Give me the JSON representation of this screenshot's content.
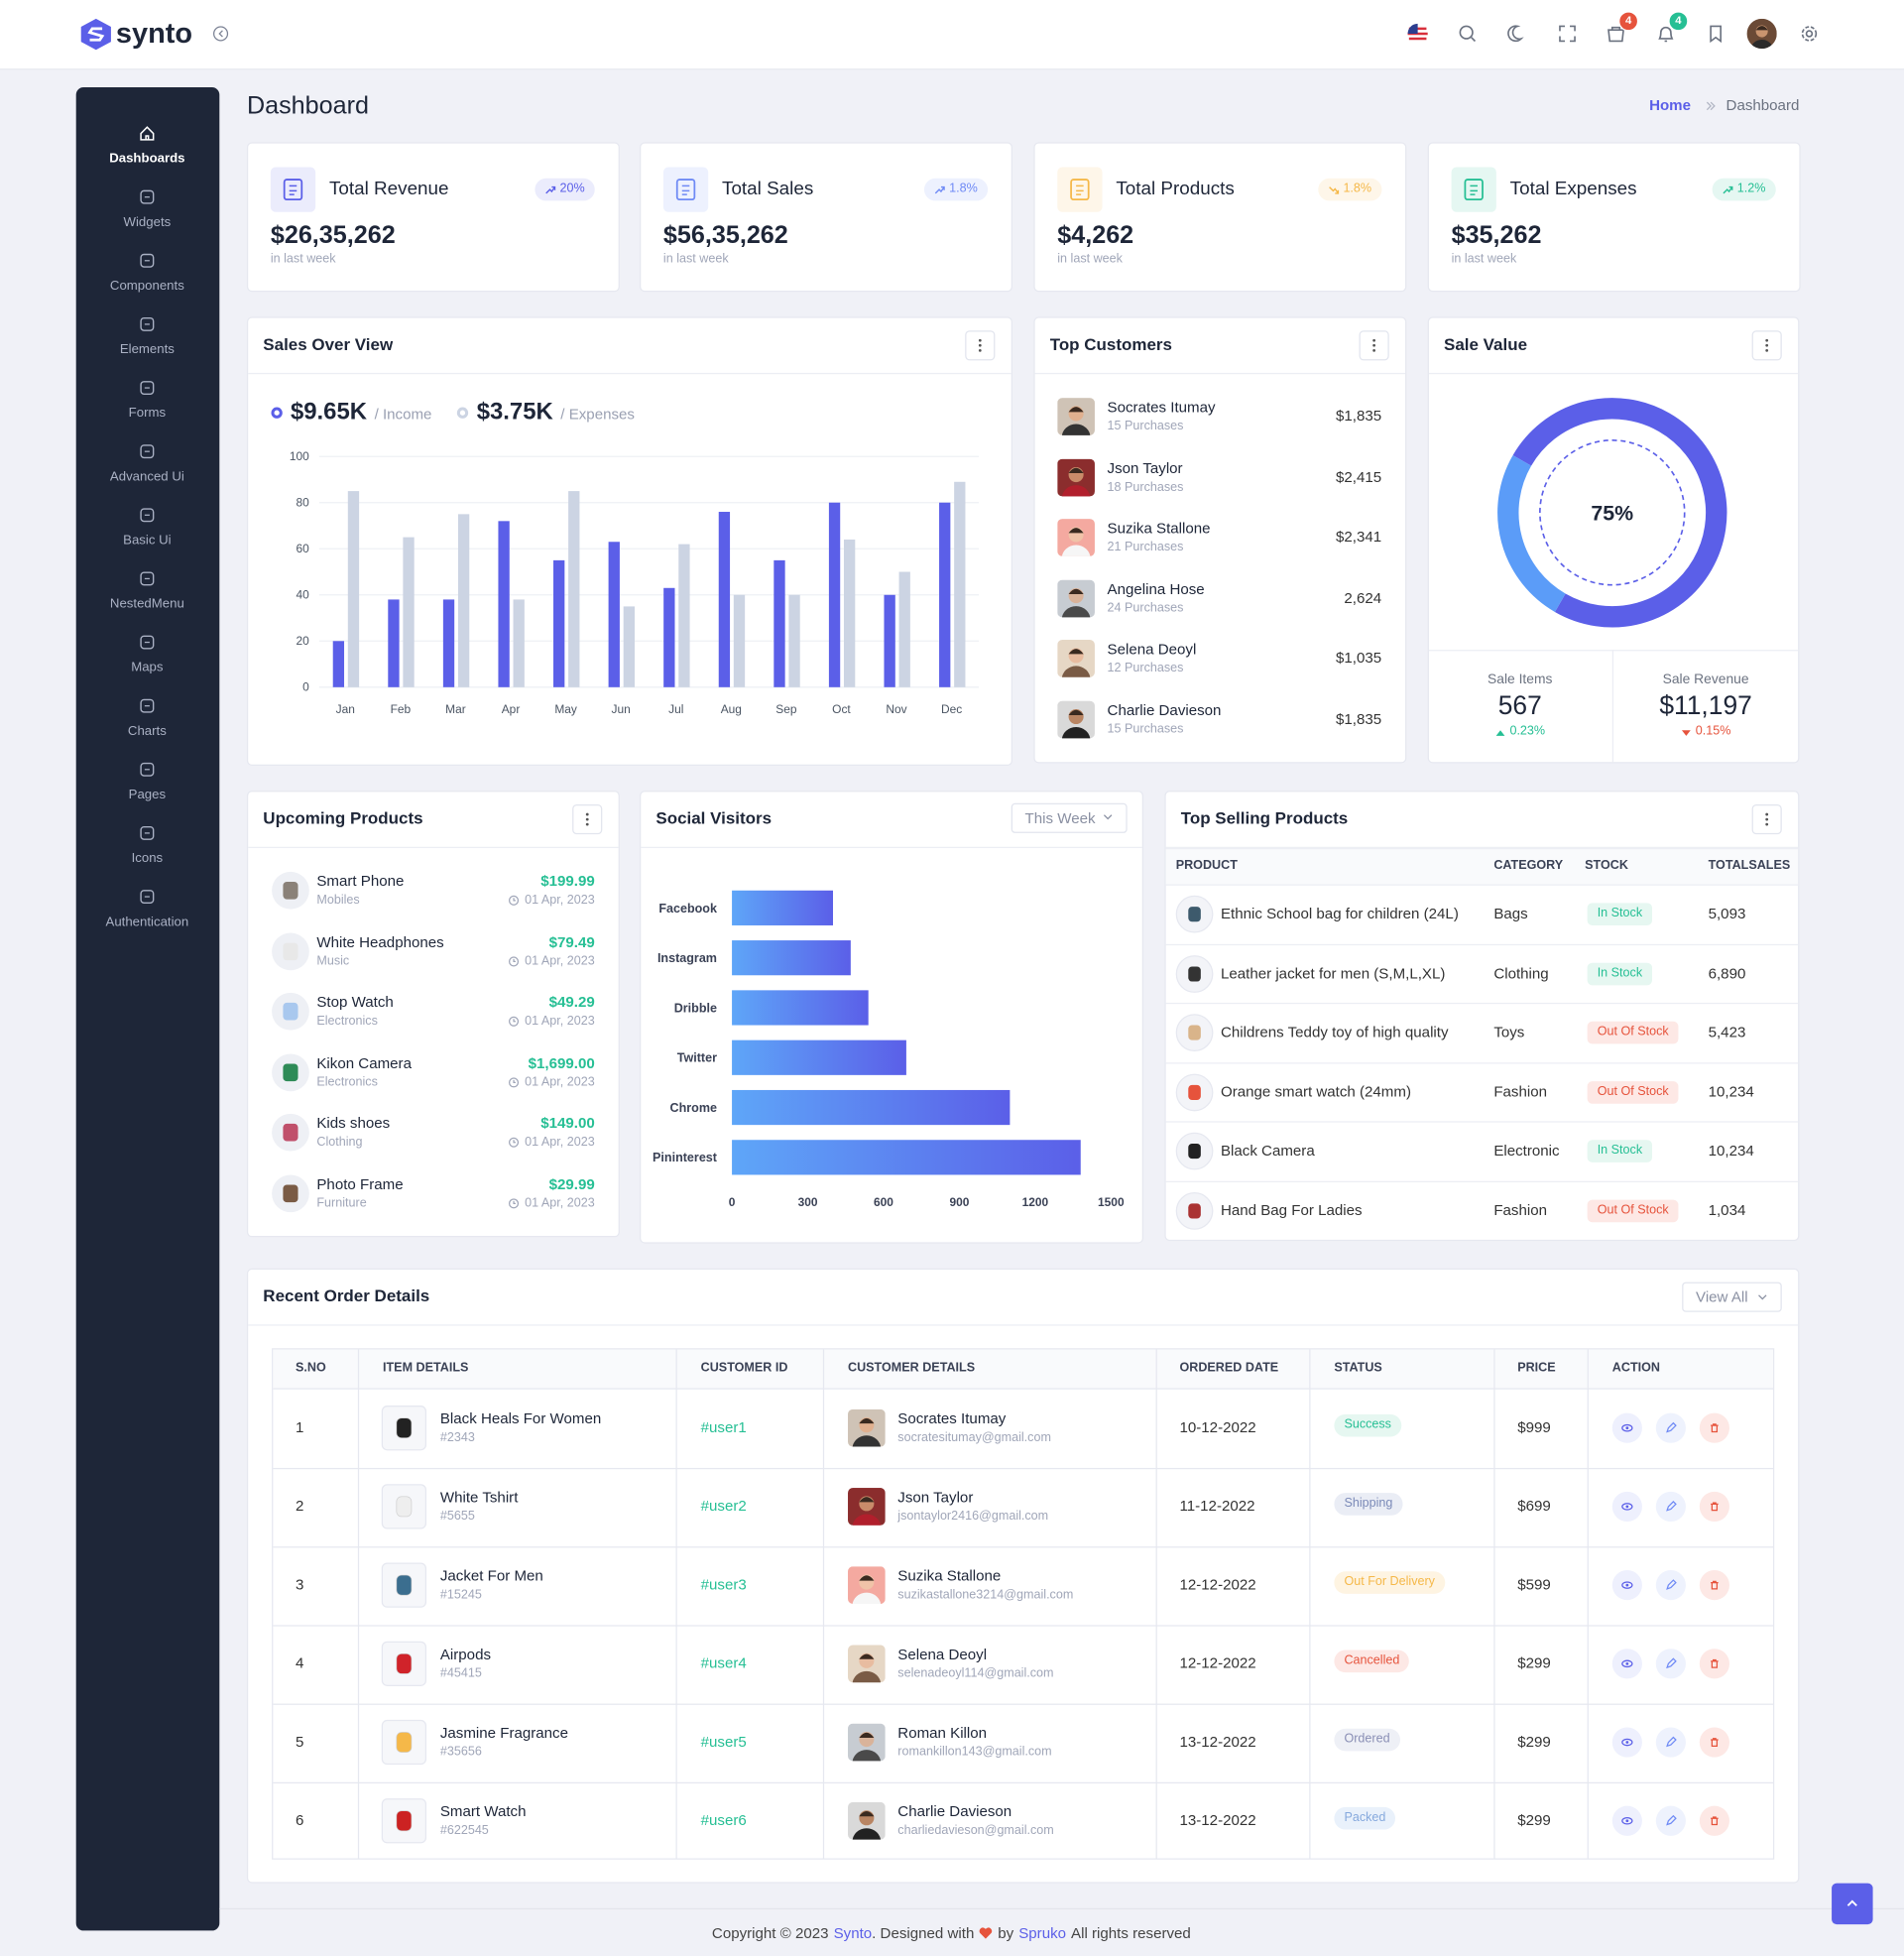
{
  "header": {
    "brand": "synto",
    "badges": [
      4,
      4
    ]
  },
  "sidebar": [
    "Dashboards",
    "Widgets",
    "Components",
    "Elements",
    "Forms",
    "Advanced Ui",
    "Basic Ui",
    "NestedMenu",
    "Maps",
    "Charts",
    "Pages",
    "Icons",
    "Authentication"
  ],
  "page_title": "Dashboard",
  "breadcrumb": [
    "Home",
    "Dashboard"
  ],
  "stats": [
    {
      "title": "Total Revenue",
      "value": "$26,35,262",
      "change": "20%",
      "trend": "up",
      "note": "in last week",
      "color": "#5b5fe8"
    },
    {
      "title": "Total Sales",
      "value": "$56,35,262",
      "change": "1.8%",
      "trend": "up",
      "note": "in last week",
      "color": "#6f8af5"
    },
    {
      "title": "Total Products",
      "value": "$4,262",
      "change": "1.8%",
      "trend": "down",
      "note": "in last week",
      "color": "#f5b849"
    },
    {
      "title": "Total Expenses",
      "value": "$35,262",
      "change": "1.2%",
      "trend": "up",
      "note": "in last week",
      "color": "#26bf94"
    }
  ],
  "chart_data": [
    {
      "type": "bar",
      "title": "Sales Over View",
      "categories": [
        "Jan",
        "Feb",
        "Mar",
        "Apr",
        "May",
        "Jun",
        "Jul",
        "Aug",
        "Sep",
        "Oct",
        "Nov",
        "Dec"
      ],
      "series": [
        {
          "name": "/ Income",
          "total": "$9.65K",
          "color": "#5b5fe8",
          "values": [
            20,
            38,
            38,
            72,
            55,
            63,
            43,
            76,
            55,
            80,
            40,
            80
          ]
        },
        {
          "name": "/ Expenses",
          "total": "$3.75K",
          "color": "#ccd4e3",
          "values": [
            85,
            65,
            75,
            38,
            85,
            35,
            62,
            40,
            40,
            64,
            50,
            89
          ]
        }
      ],
      "ylim": [
        0,
        100
      ],
      "yticks": [
        0,
        20,
        40,
        60,
        80,
        100
      ],
      "grid": true
    },
    {
      "type": "doughnut",
      "title": "Sale Value",
      "values": [
        75,
        25
      ],
      "colors": [
        "#5b5fe8",
        "#5b9cf8"
      ],
      "center_label": "75%"
    },
    {
      "type": "bar",
      "orientation": "horizontal",
      "title": "Social Visitors",
      "filter": "This Week",
      "categories": [
        "Facebook",
        "Instagram",
        "Dribble",
        "Twitter",
        "Chrome",
        "Pininterest"
      ],
      "values": [
        400,
        470,
        540,
        690,
        1100,
        1380
      ],
      "gradient": [
        "#5ea6f8",
        "#5b5fe8"
      ],
      "xlim": [
        0,
        1500
      ],
      "xticks": [
        0,
        300,
        600,
        900,
        1200,
        1500
      ],
      "grid": false
    }
  ],
  "top_customers": {
    "title": "Top Customers",
    "rows": [
      {
        "name": "Socrates Itumay",
        "sub": "15 Purchases",
        "amount": "$1,835"
      },
      {
        "name": "Json Taylor",
        "sub": "18 Purchases",
        "amount": "$2,415"
      },
      {
        "name": "Suzika Stallone",
        "sub": "21 Purchases",
        "amount": "$2,341"
      },
      {
        "name": "Angelina Hose",
        "sub": "24 Purchases",
        "amount": "2,624"
      },
      {
        "name": "Selena Deoyl",
        "sub": "12 Purchases",
        "amount": "$1,035"
      },
      {
        "name": "Charlie Davieson",
        "sub": "15 Purchases",
        "amount": "$1,835"
      }
    ]
  },
  "sale_value": {
    "stats": [
      {
        "label": "Sale Items",
        "value": "567",
        "change": "0.23%",
        "trend": "up"
      },
      {
        "label": "Sale Revenue",
        "value": "$11,197",
        "change": "0.15%",
        "trend": "down"
      }
    ]
  },
  "upcoming": {
    "title": "Upcoming Products",
    "rows": [
      {
        "name": "Smart Phone",
        "category": "Mobiles",
        "price": "$199.99",
        "date": "01 Apr, 2023"
      },
      {
        "name": "White Headphones",
        "category": "Music",
        "price": "$79.49",
        "date": "01 Apr, 2023"
      },
      {
        "name": "Stop Watch",
        "category": "Electronics",
        "price": "$49.29",
        "date": "01 Apr, 2023"
      },
      {
        "name": "Kikon Camera",
        "category": "Electronics",
        "price": "$1,699.00",
        "date": "01 Apr, 2023"
      },
      {
        "name": "Kids shoes",
        "category": "Clothing",
        "price": "$149.00",
        "date": "01 Apr, 2023"
      },
      {
        "name": "Photo Frame",
        "category": "Furniture",
        "price": "$29.99",
        "date": "01 Apr, 2023"
      }
    ]
  },
  "top_selling": {
    "title": "Top Selling Products",
    "columns": [
      "PRODUCT",
      "CATEGORY",
      "STOCK",
      "TOTALSALES"
    ],
    "rows": [
      {
        "product": "Ethnic School bag for children (24L)",
        "category": "Bags",
        "stock": "In Stock",
        "tone": "success",
        "total": "5,093"
      },
      {
        "product": "Leather jacket for men (S,M,L,XL)",
        "category": "Clothing",
        "stock": "In Stock",
        "tone": "success",
        "total": "6,890"
      },
      {
        "product": "Childrens Teddy toy of high quality",
        "category": "Toys",
        "stock": "Out Of Stock",
        "tone": "danger",
        "total": "5,423"
      },
      {
        "product": "Orange smart watch (24mm)",
        "category": "Fashion",
        "stock": "Out Of Stock",
        "tone": "danger",
        "total": "10,234"
      },
      {
        "product": "Black Camera",
        "category": "Electronic",
        "stock": "In Stock",
        "tone": "success",
        "total": "10,234"
      },
      {
        "product": "Hand Bag For Ladies",
        "category": "Fashion",
        "stock": "Out Of Stock",
        "tone": "danger",
        "total": "1,034"
      }
    ]
  },
  "orders": {
    "title": "Recent Order Details",
    "button": "View All",
    "columns": [
      "S.NO",
      "ITEM DETAILS",
      "CUSTOMER ID",
      "CUSTOMER DETAILS",
      "ORDERED DATE",
      "STATUS",
      "PRICE",
      "ACTION"
    ],
    "rows": [
      {
        "sno": 1,
        "item": "Black Heals For Women",
        "code": "#2343",
        "user": "#user1",
        "name": "Socrates Itumay",
        "email": "socratesitumay@gmail.com",
        "date": "10-12-2022",
        "status": "Success",
        "tone": "success",
        "price": "$999"
      },
      {
        "sno": 2,
        "item": "White Tshirt",
        "code": "#5655",
        "user": "#user2",
        "name": "Json Taylor",
        "email": "jsontaylor2416@gmail.com",
        "date": "11-12-2022",
        "status": "Shipping",
        "tone": "info",
        "price": "$699"
      },
      {
        "sno": 3,
        "item": "Jacket For Men",
        "code": "#15245",
        "user": "#user3",
        "name": "Suzika Stallone",
        "email": "suzikastallone3214@gmail.com",
        "date": "12-12-2022",
        "status": "Out For Delivery",
        "tone": "warning",
        "price": "$599"
      },
      {
        "sno": 4,
        "item": "Airpods",
        "code": "#45415",
        "user": "#user4",
        "name": "Selena Deoyl",
        "email": "selenadeoyl114@gmail.com",
        "date": "12-12-2022",
        "status": "Cancelled",
        "tone": "danger",
        "price": "$299"
      },
      {
        "sno": 5,
        "item": "Jasmine Fragrance",
        "code": "#35656",
        "user": "#user5",
        "name": "Roman Killon",
        "email": "romankillon143@gmail.com",
        "date": "13-12-2022",
        "status": "Ordered",
        "tone": "secondary",
        "price": "$299"
      },
      {
        "sno": 6,
        "item": "Smart Watch",
        "code": "#622545",
        "user": "#user6",
        "name": "Charlie Davieson",
        "email": "charliedavieson@gmail.com",
        "date": "13-12-2022",
        "status": "Packed",
        "tone": "primary",
        "price": "$299"
      }
    ]
  },
  "footer": [
    "Copyright © 2023",
    "Synto",
    ". Designed with",
    "by",
    "Spruko",
    "All rights reserved"
  ]
}
